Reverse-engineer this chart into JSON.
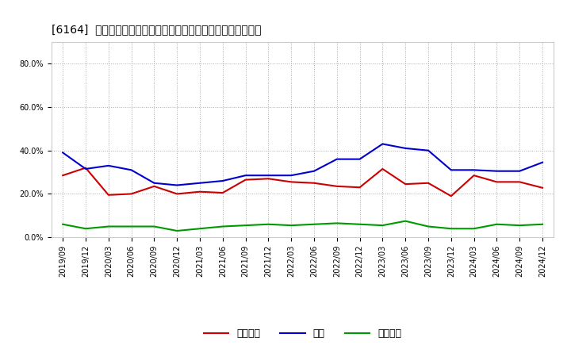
{
  "title": "[6164]  売上債権、在庫、買入債務の総資産に対する比率の推移",
  "x_labels": [
    "2019/09",
    "2019/12",
    "2020/03",
    "2020/06",
    "2020/09",
    "2020/12",
    "2021/03",
    "2021/06",
    "2021/09",
    "2021/12",
    "2022/03",
    "2022/06",
    "2022/09",
    "2022/12",
    "2023/03",
    "2023/06",
    "2023/09",
    "2023/12",
    "2024/03",
    "2024/06",
    "2024/09",
    "2024/12"
  ],
  "urikake": [
    0.285,
    0.32,
    0.195,
    0.2,
    0.235,
    0.2,
    0.21,
    0.205,
    0.265,
    0.27,
    0.255,
    0.25,
    0.235,
    0.23,
    0.315,
    0.245,
    0.25,
    0.19,
    0.285,
    0.255,
    0.255,
    0.228
  ],
  "zaiko": [
    0.39,
    0.315,
    0.33,
    0.31,
    0.25,
    0.24,
    0.25,
    0.26,
    0.285,
    0.285,
    0.285,
    0.305,
    0.36,
    0.36,
    0.43,
    0.41,
    0.4,
    0.31,
    0.31,
    0.305,
    0.305,
    0.345
  ],
  "kaiire": [
    0.06,
    0.04,
    0.05,
    0.05,
    0.05,
    0.03,
    0.04,
    0.05,
    0.055,
    0.06,
    0.055,
    0.06,
    0.065,
    0.06,
    0.055,
    0.075,
    0.05,
    0.04,
    0.04,
    0.06,
    0.055,
    0.06
  ],
  "urikake_color": "#cc0000",
  "zaiko_color": "#0000cc",
  "kaiire_color": "#009900",
  "legend_urikake": "売上債権",
  "legend_zaiko": "在庫",
  "legend_kaiire": "買入債務",
  "ylim": [
    0.0,
    0.9
  ],
  "yticks": [
    0.0,
    0.2,
    0.4,
    0.6,
    0.8
  ],
  "ytick_labels": [
    "0.0%",
    "20.0%",
    "40.0%",
    "60.0%",
    "80.0%"
  ],
  "bg_color": "#ffffff",
  "plot_bg_color": "#ffffff",
  "grid_color": "#aaaaaa",
  "title_fontsize": 10,
  "legend_fontsize": 9,
  "tick_fontsize": 7
}
